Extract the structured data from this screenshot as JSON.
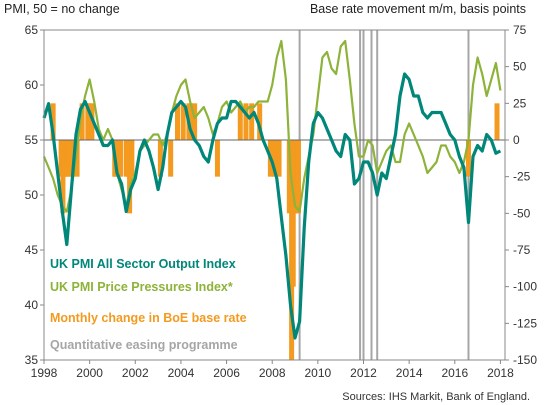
{
  "header": {
    "left_label": "PMI, 50 = no change",
    "right_label": "Base rate movement m/m, basis points"
  },
  "source": "Sources: IHS Markit, Bank of England.",
  "chart_data": {
    "type": "line",
    "x_ticks": [
      "1998",
      "2000",
      "2002",
      "2004",
      "2006",
      "2008",
      "2010",
      "2012",
      "2014",
      "2016",
      "2018"
    ],
    "xlim": [
      1998,
      2018.2
    ],
    "left_axis": {
      "ticks": [
        "35",
        "40",
        "45",
        "50",
        "55",
        "60",
        "65"
      ],
      "ylim": [
        35,
        65
      ]
    },
    "right_axis": {
      "ticks": [
        "-150",
        "-125",
        "-100",
        "-75",
        "-50",
        "-25",
        "0",
        "25",
        "50",
        "75"
      ],
      "ylim": [
        -150,
        75
      ]
    },
    "legend": [
      {
        "label": "UK PMI All Sector Output Index",
        "color": "#00877a"
      },
      {
        "label": "UK PMI Price Pressures Index*",
        "color": "#8db33a"
      },
      {
        "label": "Monthly change in BoE base rate",
        "color": "#f39a1f"
      },
      {
        "label": "Quantitative easing programme",
        "color": "#a6a6a6"
      }
    ],
    "series": [
      {
        "name": "UK PMI All Sector Output Index",
        "color": "#00877a",
        "axis": "left",
        "x": [
          1998.0,
          1998.2,
          1998.4,
          1998.6,
          1998.8,
          1999.0,
          1999.2,
          1999.4,
          1999.6,
          1999.8,
          2000.0,
          2000.2,
          2000.4,
          2000.6,
          2000.8,
          2001.0,
          2001.2,
          2001.4,
          2001.6,
          2001.8,
          2002.0,
          2002.2,
          2002.4,
          2002.6,
          2002.8,
          2003.0,
          2003.2,
          2003.4,
          2003.6,
          2003.8,
          2004.0,
          2004.2,
          2004.4,
          2004.6,
          2004.8,
          2005.0,
          2005.2,
          2005.4,
          2005.6,
          2005.8,
          2006.0,
          2006.2,
          2006.4,
          2006.6,
          2006.8,
          2007.0,
          2007.2,
          2007.4,
          2007.6,
          2007.8,
          2008.0,
          2008.2,
          2008.4,
          2008.6,
          2008.8,
          2009.0,
          2009.2,
          2009.4,
          2009.6,
          2009.8,
          2010.0,
          2010.2,
          2010.4,
          2010.6,
          2010.8,
          2011.0,
          2011.2,
          2011.4,
          2011.6,
          2011.8,
          2012.0,
          2012.2,
          2012.4,
          2012.6,
          2012.8,
          2013.0,
          2013.2,
          2013.4,
          2013.6,
          2013.8,
          2014.0,
          2014.2,
          2014.4,
          2014.6,
          2014.8,
          2015.0,
          2015.2,
          2015.4,
          2015.6,
          2015.8,
          2016.0,
          2016.2,
          2016.4,
          2016.6,
          2016.8,
          2017.0,
          2017.2,
          2017.4,
          2017.6,
          2017.8,
          2018.0
        ],
        "values": [
          57.0,
          58.3,
          55.5,
          52.0,
          48.5,
          45.5,
          50.5,
          55.5,
          57.8,
          58.5,
          57.5,
          56.5,
          55.5,
          54.5,
          54.5,
          55.0,
          52.0,
          51.0,
          48.5,
          50.5,
          51.5,
          54.0,
          55.0,
          54.0,
          52.5,
          50.5,
          52.5,
          55.5,
          57.5,
          58.0,
          58.5,
          58.0,
          56.0,
          55.0,
          54.5,
          53.5,
          53.0,
          55.0,
          56.5,
          57.0,
          57.0,
          58.5,
          58.5,
          58.0,
          57.5,
          57.0,
          57.5,
          56.5,
          55.0,
          54.0,
          53.0,
          51.5,
          48.0,
          44.5,
          40.0,
          37.0,
          38.5,
          47.0,
          53.0,
          56.5,
          57.5,
          57.0,
          56.0,
          55.0,
          54.0,
          53.5,
          55.5,
          55.0,
          51.0,
          51.5,
          53.0,
          53.0,
          52.0,
          50.0,
          52.0,
          51.5,
          53.5,
          55.5,
          59.0,
          61.0,
          60.5,
          59.0,
          59.0,
          57.5,
          57.0,
          57.5,
          57.5,
          57.5,
          56.5,
          55.5,
          55.0,
          53.5,
          52.5,
          47.5,
          53.5,
          54.5,
          54.0,
          55.5,
          55.0,
          53.8,
          54.0
        ]
      },
      {
        "name": "UK PMI Price Pressures Index*",
        "color": "#8db33a",
        "axis": "left",
        "x": [
          1998.0,
          1998.2,
          1998.4,
          1998.6,
          1998.8,
          1999.0,
          1999.2,
          1999.4,
          1999.6,
          1999.8,
          2000.0,
          2000.2,
          2000.4,
          2000.6,
          2000.8,
          2001.0,
          2001.2,
          2001.4,
          2001.6,
          2001.8,
          2002.0,
          2002.2,
          2002.4,
          2002.6,
          2002.8,
          2003.0,
          2003.2,
          2003.4,
          2003.6,
          2003.8,
          2004.0,
          2004.2,
          2004.4,
          2004.6,
          2004.8,
          2005.0,
          2005.2,
          2005.4,
          2005.6,
          2005.8,
          2006.0,
          2006.2,
          2006.4,
          2006.6,
          2006.8,
          2007.0,
          2007.2,
          2007.4,
          2007.6,
          2007.8,
          2008.0,
          2008.2,
          2008.4,
          2008.6,
          2008.8,
          2009.0,
          2009.2,
          2009.4,
          2009.6,
          2009.8,
          2010.0,
          2010.2,
          2010.4,
          2010.6,
          2010.8,
          2011.0,
          2011.2,
          2011.4,
          2011.6,
          2011.8,
          2012.0,
          2012.2,
          2012.4,
          2012.6,
          2012.8,
          2013.0,
          2013.2,
          2013.4,
          2013.6,
          2013.8,
          2014.0,
          2014.2,
          2014.4,
          2014.6,
          2014.8,
          2015.0,
          2015.2,
          2015.4,
          2015.6,
          2015.8,
          2016.0,
          2016.2,
          2016.4,
          2016.6,
          2016.8,
          2017.0,
          2017.2,
          2017.4,
          2017.6,
          2017.8,
          2018.0
        ],
        "values": [
          53.5,
          52.5,
          51.5,
          50.0,
          49.0,
          48.5,
          50.5,
          53.5,
          57.0,
          59.0,
          60.5,
          58.5,
          56.0,
          55.0,
          56.0,
          55.0,
          52.0,
          50.5,
          49.0,
          51.0,
          52.0,
          54.0,
          54.5,
          55.0,
          55.5,
          55.5,
          54.5,
          55.5,
          57.5,
          59.0,
          60.0,
          60.5,
          58.5,
          57.0,
          57.5,
          58.0,
          57.0,
          55.5,
          56.5,
          58.0,
          58.5,
          57.5,
          58.0,
          58.5,
          57.5,
          58.0,
          58.0,
          58.5,
          58.5,
          58.5,
          60.0,
          62.5,
          64.0,
          60.5,
          52.0,
          49.0,
          48.5,
          51.5,
          53.5,
          55.5,
          59.0,
          62.5,
          63.0,
          61.5,
          61.0,
          63.5,
          64.0,
          60.5,
          56.5,
          53.5,
          53.5,
          55.0,
          54.5,
          52.0,
          53.0,
          54.0,
          54.5,
          53.0,
          53.0,
          55.5,
          56.5,
          55.5,
          54.5,
          53.5,
          52.0,
          52.5,
          53.0,
          54.5,
          54.5,
          53.5,
          53.0,
          52.0,
          53.0,
          55.0,
          60.0,
          62.5,
          61.0,
          59.0,
          60.5,
          62.0,
          59.5
        ]
      }
    ],
    "base_rate_changes": {
      "name": "Monthly change in BoE base rate",
      "color": "#f39a1f",
      "axis": "right",
      "x": [
        1998.4,
        1998.75,
        1998.83,
        1998.92,
        1999.0,
        1999.08,
        1999.25,
        1999.45,
        1999.67,
        1999.92,
        2000.0,
        2000.1,
        2001.1,
        2001.15,
        2001.25,
        2001.35,
        2001.6,
        2001.7,
        2001.75,
        2001.85,
        2003.1,
        2003.55,
        2003.85,
        2004.1,
        2004.35,
        2004.45,
        2004.6,
        2005.6,
        2006.6,
        2006.85,
        2007.1,
        2007.45,
        2007.92,
        2008.1,
        2008.3,
        2008.75,
        2008.85,
        2008.92,
        2009.0,
        2009.08,
        2009.15,
        2016.6,
        2017.85
      ],
      "values": [
        25,
        -25,
        -50,
        -25,
        -25,
        -25,
        -25,
        -25,
        25,
        25,
        25,
        25,
        -25,
        -25,
        -25,
        -25,
        -25,
        -25,
        -50,
        -25,
        -25,
        -25,
        25,
        25,
        25,
        25,
        25,
        -25,
        25,
        25,
        25,
        25,
        -25,
        -25,
        -25,
        -50,
        -150,
        -100,
        -50,
        -50,
        -50,
        -25,
        25
      ]
    },
    "qe_programmes": {
      "name": "Quantitative easing programme",
      "color": "#a6a6a6",
      "x": [
        2009.2,
        2011.85,
        2012.0,
        2012.35,
        2012.6,
        2016.6
      ]
    }
  }
}
